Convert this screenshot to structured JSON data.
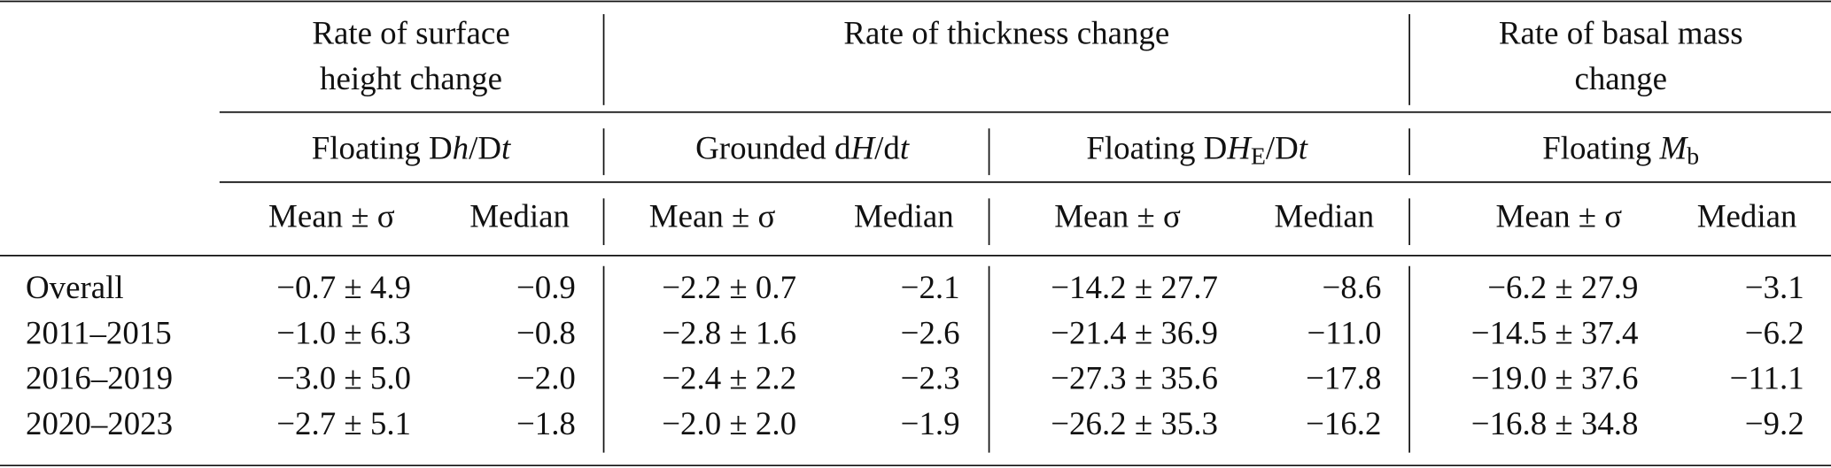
{
  "table": {
    "group_headers": [
      {
        "lines": [
          "Rate of surface",
          "height change"
        ]
      },
      {
        "lines": [
          "Rate of thickness change"
        ]
      },
      {
        "lines": [
          "Rate of basal mass",
          "change"
        ]
      }
    ],
    "sub_headers": [
      [
        {
          "text": "Floating D"
        },
        {
          "text": "h",
          "italic": true
        },
        {
          "text": "/D"
        },
        {
          "text": "t",
          "italic": true
        }
      ],
      [
        {
          "text": "Grounded d"
        },
        {
          "text": "H",
          "italic": true
        },
        {
          "text": "/d"
        },
        {
          "text": "t",
          "italic": true
        }
      ],
      [
        {
          "text": "Floating D"
        },
        {
          "text": "H",
          "italic": true
        },
        {
          "text": "E",
          "sub": true
        },
        {
          "text": "/D"
        },
        {
          "text": "t",
          "italic": true
        }
      ],
      [
        {
          "text": "Floating "
        },
        {
          "text": "M",
          "italic": true
        },
        {
          "text": "b",
          "sub": true
        }
      ]
    ],
    "column_headers": [
      "Mean ± σ",
      "Median",
      "Mean ± σ",
      "Median",
      "Mean ± σ",
      "Median",
      "Mean ± σ",
      "Median"
    ],
    "rows": [
      [
        "Overall",
        "−0.7 ± 4.9",
        "−0.9",
        "−2.2 ± 0.7",
        "−2.1",
        "−14.2 ± 27.7",
        "−8.6",
        "−6.2 ± 27.9",
        "−3.1"
      ],
      [
        "2011–2015",
        "−1.0 ± 6.3",
        "−0.8",
        "−2.8 ± 1.6",
        "−2.6",
        "−21.4 ± 36.9",
        "−11.0",
        "−14.5 ± 37.4",
        "−6.2"
      ],
      [
        "2016–2019",
        "−3.0 ± 5.0",
        "−2.0",
        "−2.4 ± 2.2",
        "−2.3",
        "−27.3 ± 35.6",
        "−17.8",
        "−19.0 ± 37.6",
        "−11.1"
      ],
      [
        "2020–2023",
        "−2.7 ± 5.1",
        "−1.8",
        "−2.0 ± 2.0",
        "−1.9",
        "−26.2 ± 35.3",
        "−16.2",
        "−16.8 ± 34.8",
        "−9.2"
      ]
    ]
  }
}
